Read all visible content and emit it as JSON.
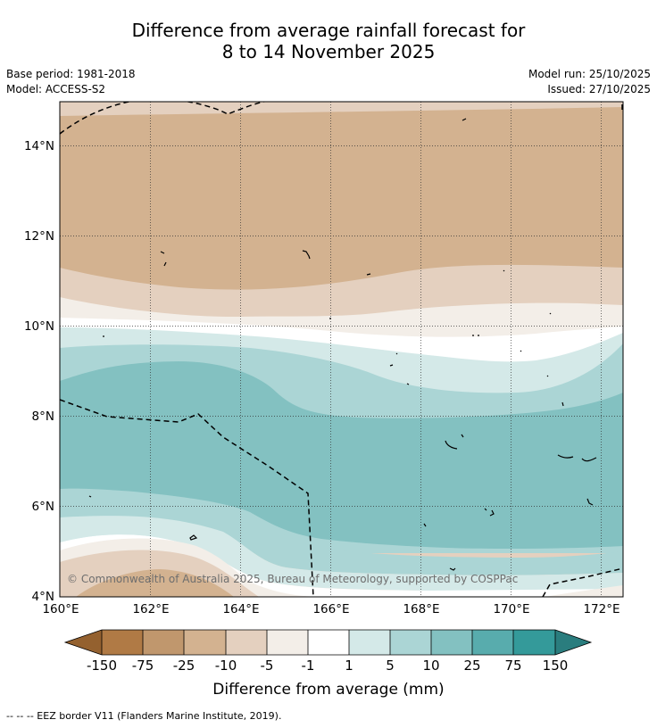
{
  "header": {
    "title_line1": "Difference from average rainfall forecast for",
    "title_line2": "8 to 14 November 2025",
    "base_period": "Base period: 1981-2018",
    "model": "Model: ACCESS-S2",
    "model_run": "Model run: 25/10/2025",
    "issued": "Issued: 27/10/2025"
  },
  "map": {
    "lon_ticks": [
      "160°E",
      "162°E",
      "164°E",
      "166°E",
      "168°E",
      "170°E",
      "172°E"
    ],
    "lat_ticks": [
      "14°N",
      "12°N",
      "10°N",
      "8°N",
      "6°N",
      "4°N"
    ],
    "copyright": "© Commonwealth of Australia 2025, Bureau of Meteorology, supported by COSPPac"
  },
  "colorbar": {
    "title": "Difference from average (mm)",
    "labels": [
      "-150",
      "-75",
      "-25",
      "-10",
      "-5",
      "-1",
      "1",
      "5",
      "10",
      "25",
      "75",
      "150"
    ],
    "colors": {
      "below_min": "#94612f",
      "c1": "#b07a45",
      "c2": "#c0976d",
      "c3": "#d3b290",
      "c4": "#e4d0bf",
      "c5": "#f3eee8",
      "c6": "#ffffff",
      "c7": "#d4e9e8",
      "c8": "#abd5d5",
      "c9": "#83c1c1",
      "c10": "#58acad",
      "c11": "#349a9a",
      "above_max": "#2a7d7e"
    }
  },
  "footnote": "--  --  -- EEZ border V11 (Flanders Marine Institute, 2019)."
}
